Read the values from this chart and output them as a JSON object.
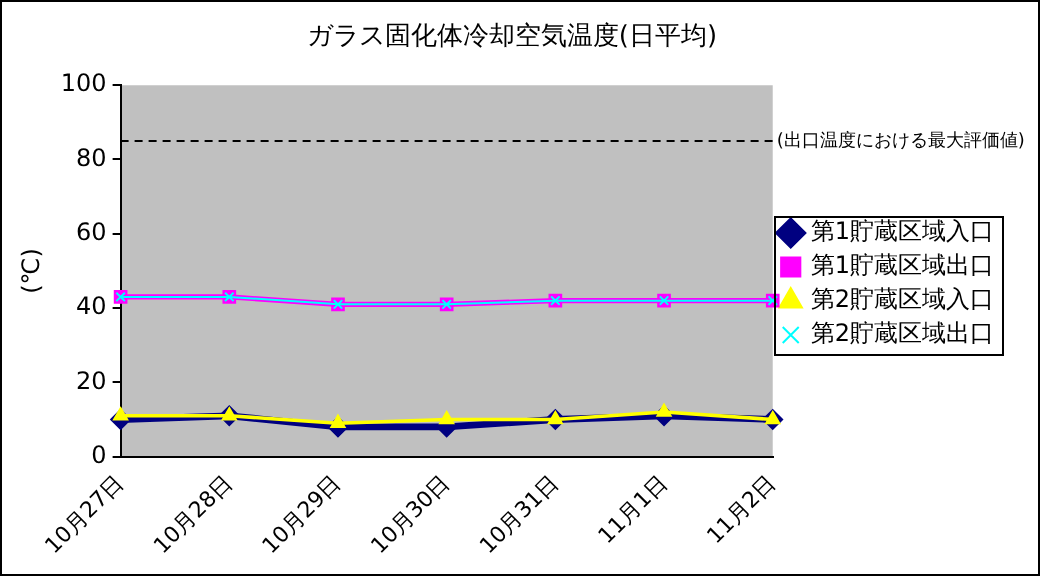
{
  "chart_data": {
    "type": "line",
    "title": "ガラス固化体冷却空気温度(日平均)",
    "ylabel": "(℃)",
    "categories": [
      "10月27日",
      "10月28日",
      "10月29日",
      "10月30日",
      "10月31日",
      "11月1日",
      "11月2日"
    ],
    "series": [
      {
        "name": "第1貯蔵区域入口",
        "color": "#000080",
        "marker": "diamond",
        "values": [
          10,
          11,
          8,
          8,
          10,
          11,
          10
        ]
      },
      {
        "name": "第1貯蔵区域出口",
        "color": "#ff00ff",
        "marker": "square",
        "values": [
          43,
          43,
          41,
          41,
          42,
          42,
          42
        ]
      },
      {
        "name": "第2貯蔵区域入口",
        "color": "#ffff00",
        "marker": "triangle",
        "values": [
          11,
          11,
          9,
          10,
          10,
          12,
          10
        ]
      },
      {
        "name": "第2貯蔵区域出口",
        "color": "#00ffff",
        "marker": "cross",
        "values": [
          43,
          43,
          41,
          41,
          42,
          42,
          42
        ]
      }
    ],
    "ylim": [
      0,
      100
    ],
    "yticks": [
      0,
      20,
      40,
      60,
      80,
      100
    ],
    "grid": false,
    "legend": "right",
    "ref_lines": [
      {
        "axis": "y",
        "value": 85,
        "label": "(出口温度における最大評価値)",
        "line_style": "dashed",
        "color": "#000000"
      }
    ]
  }
}
